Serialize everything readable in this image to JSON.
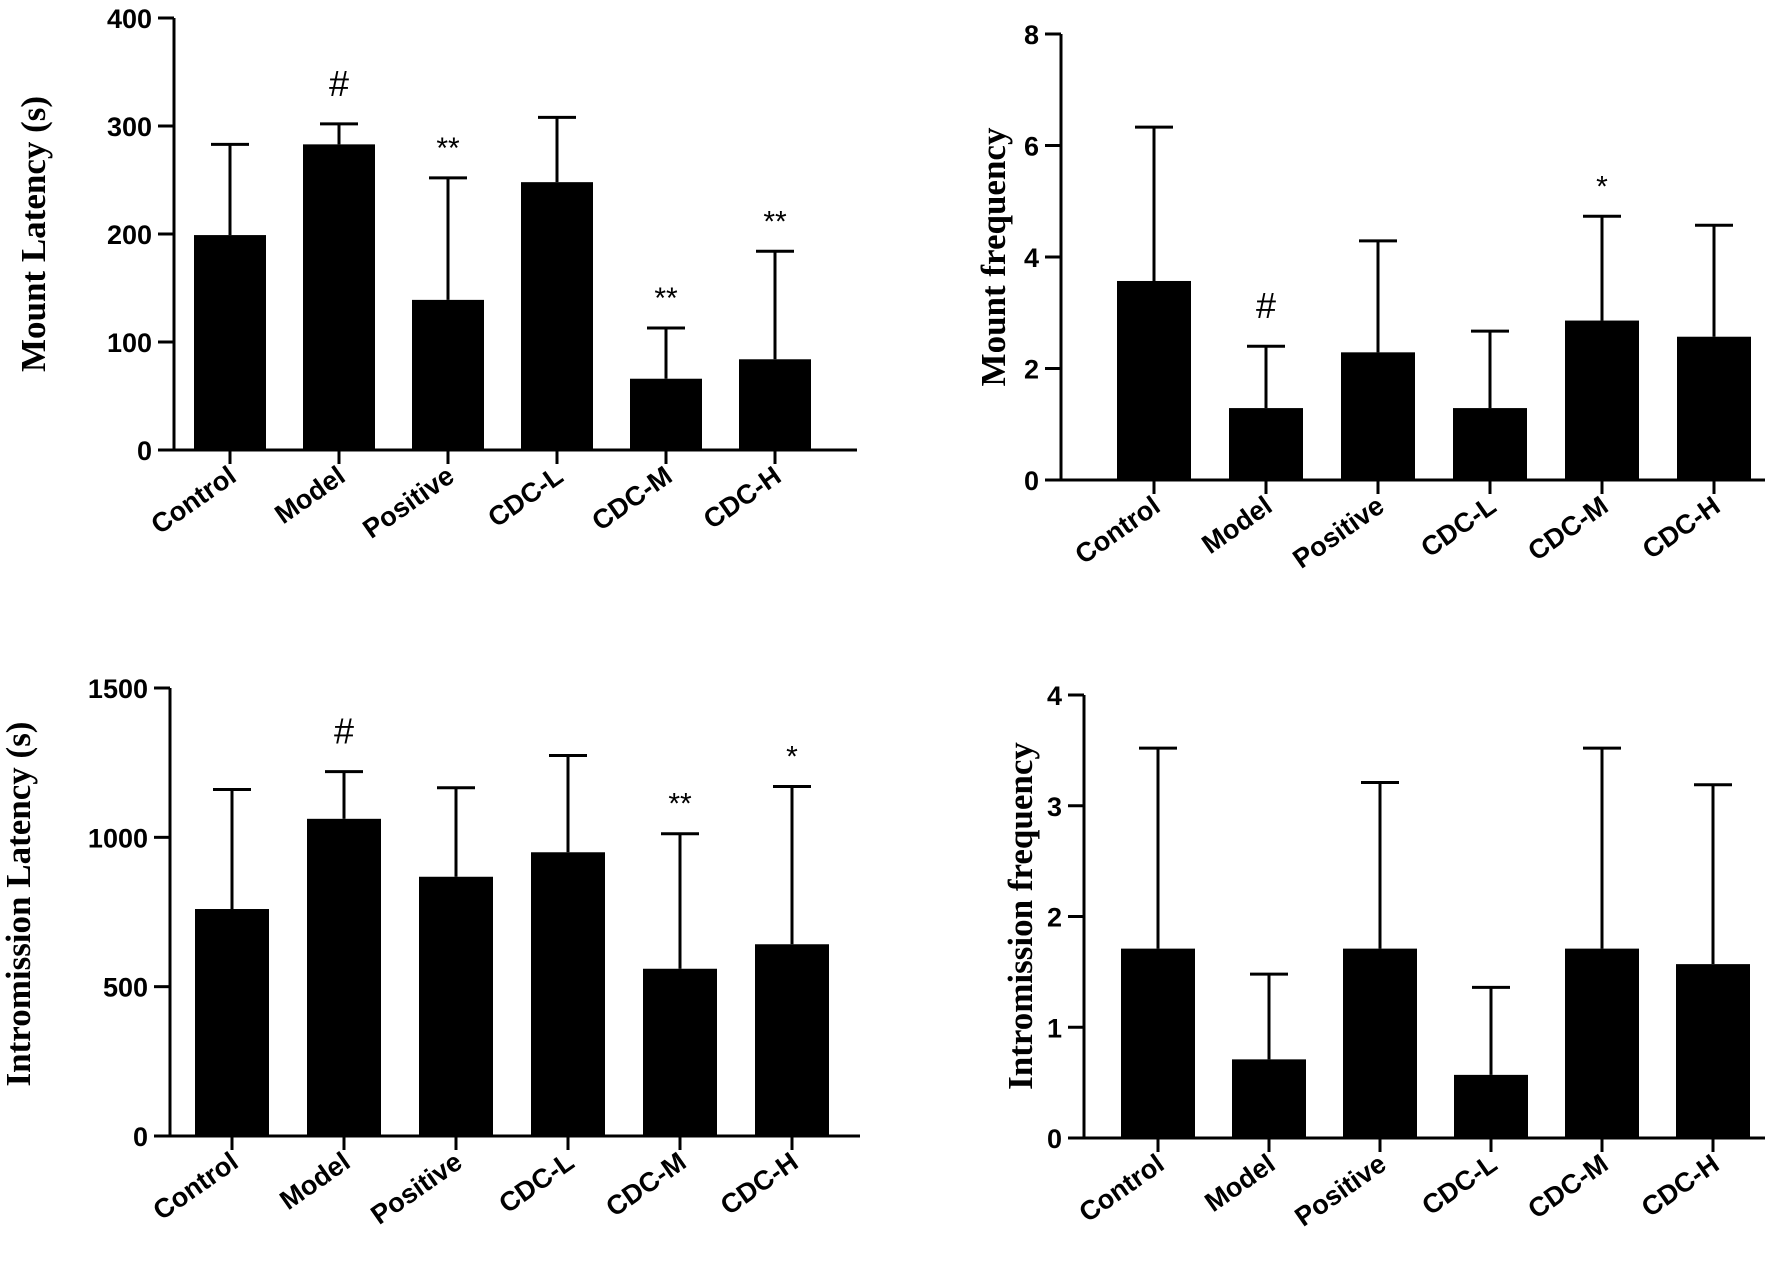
{
  "colors": {
    "bar": "#000000",
    "background": "#ffffff"
  },
  "chart_data": [
    {
      "type": "bar",
      "title": "",
      "xlabel": "",
      "ylabel": "Mount Latency (s)",
      "ylim": [
        0,
        400
      ],
      "yticks": [
        0,
        100,
        200,
        300,
        400
      ],
      "categories": [
        "Control",
        "Model",
        "Positive",
        "CDC-L",
        "CDC-M",
        "CDC-H"
      ],
      "values": [
        199,
        283,
        139,
        248,
        66,
        84
      ],
      "errors": [
        84,
        19,
        113,
        60,
        47,
        100
      ],
      "annotations": [
        "",
        "#",
        "**",
        "",
        "**",
        "**"
      ]
    },
    {
      "type": "bar",
      "title": "",
      "xlabel": "",
      "ylabel": "Mount frequency",
      "ylim": [
        0,
        8
      ],
      "yticks": [
        0,
        2,
        4,
        6,
        8
      ],
      "categories": [
        "Control",
        "Model",
        "Positive",
        "CDC-L",
        "CDC-M",
        "CDC-H"
      ],
      "values": [
        3.57,
        1.29,
        2.29,
        1.29,
        2.86,
        2.57
      ],
      "errors": [
        2.76,
        1.11,
        2.0,
        1.38,
        1.87,
        2.0
      ],
      "annotations": [
        "",
        "#",
        "",
        "",
        "*",
        ""
      ]
    },
    {
      "type": "bar",
      "title": "",
      "xlabel": "",
      "ylabel": "Intromission Latency (s)",
      "ylim": [
        0,
        1500
      ],
      "yticks": [
        0,
        500,
        1000,
        1500
      ],
      "categories": [
        "Control",
        "Model",
        "Positive",
        "CDC-L",
        "CDC-M",
        "CDC-H"
      ],
      "values": [
        760,
        1062,
        868,
        950,
        560,
        642
      ],
      "errors": [
        400,
        158,
        298,
        324,
        452,
        528
      ],
      "annotations": [
        "",
        "#",
        "",
        "",
        "**",
        "*"
      ]
    },
    {
      "type": "bar",
      "title": "",
      "xlabel": "",
      "ylabel": "Intromission frequency",
      "ylim": [
        0,
        4
      ],
      "yticks": [
        0,
        1,
        2,
        3,
        4
      ],
      "categories": [
        "Control",
        "Model",
        "Positive",
        "CDC-L",
        "CDC-M",
        "CDC-H"
      ],
      "values": [
        1.71,
        0.71,
        1.71,
        0.57,
        1.71,
        1.57
      ],
      "errors": [
        1.81,
        0.77,
        1.5,
        0.79,
        1.81,
        1.62
      ],
      "annotations": [
        "",
        "",
        "",
        "",
        "",
        ""
      ]
    }
  ]
}
